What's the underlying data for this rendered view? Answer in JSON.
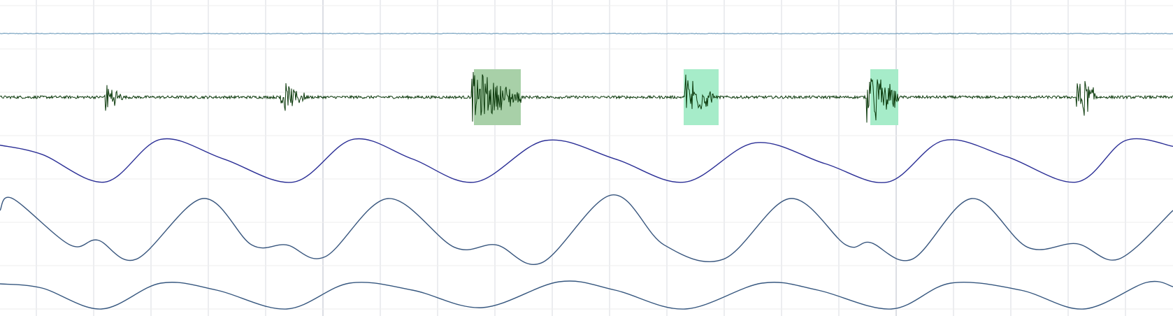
{
  "chart_data": {
    "type": "line",
    "title": "",
    "xlabel": "",
    "ylabel": "",
    "grid": true,
    "legend": "none",
    "xlim": [
      0,
      1678
    ],
    "series": [
      {
        "kind": "flat-noisy",
        "color": "#5b8fb3",
        "baseline": 0,
        "ylim": [
          -1,
          1
        ]
      },
      {
        "kind": "bursts",
        "color": "#0c3a0c",
        "ylim": [
          -1,
          1
        ],
        "baseline_noise": 0.05,
        "bursts": [
          {
            "start": 150,
            "end": 175,
            "amp": 0.75
          },
          {
            "start": 400,
            "end": 440,
            "amp": 0.6
          },
          {
            "start": 675,
            "end": 745,
            "amp": 1.0
          },
          {
            "start": 980,
            "end": 1020,
            "amp": 0.95
          },
          {
            "start": 1240,
            "end": 1285,
            "amp": 1.15
          },
          {
            "start": 1540,
            "end": 1570,
            "amp": 0.95
          }
        ],
        "highlights": [
          {
            "start": 678,
            "end": 745,
            "color": "#a8d0a8"
          },
          {
            "start": 978,
            "end": 1028,
            "color": "#a6ecc9"
          },
          {
            "start": 1245,
            "end": 1285,
            "color": "#a6ecc9"
          }
        ]
      },
      {
        "kind": "smooth",
        "color": "#2b2f96",
        "ylim": [
          -1,
          1
        ],
        "x": [
          0,
          60,
          150,
          230,
          320,
          420,
          505,
          590,
          680,
          780,
          880,
          980,
          1080,
          1180,
          1270,
          1350,
          1440,
          1540,
          1610,
          1678
        ],
        "y": [
          0.8,
          0.4,
          -0.8,
          1.05,
          0.2,
          -0.8,
          1.05,
          0.2,
          -0.8,
          1.0,
          0.2,
          -0.8,
          0.9,
          0.0,
          -0.8,
          1.0,
          0.3,
          -0.8,
          1.0,
          0.75
        ]
      },
      {
        "kind": "smooth",
        "color": "#38567e",
        "ylim": [
          -1,
          1
        ],
        "x": [
          0,
          18,
          100,
          140,
          195,
          290,
          360,
          410,
          465,
          555,
          650,
          710,
          775,
          875,
          950,
          1035,
          1130,
          1210,
          1245,
          1305,
          1390,
          1470,
          1540,
          1600,
          1678
        ],
        "y": [
          0.5,
          1.0,
          -0.95,
          -0.75,
          -1.55,
          1.0,
          -0.95,
          -0.95,
          -1.45,
          1.0,
          -1.05,
          -0.95,
          -1.7,
          1.15,
          -0.95,
          -1.55,
          1.0,
          -0.95,
          -0.85,
          -1.55,
          1.0,
          -1.05,
          -0.9,
          -1.55,
          0.5
        ]
      },
      {
        "kind": "smooth",
        "color": "#36577f",
        "ylim": [
          -1,
          1
        ],
        "x": [
          0,
          60,
          145,
          230,
          310,
          410,
          500,
          590,
          690,
          800,
          880,
          980,
          1090,
          1170,
          1275,
          1360,
          1460,
          1550,
          1640,
          1678
        ],
        "y": [
          0.8,
          0.5,
          -1.0,
          0.85,
          0.35,
          -1.0,
          0.85,
          0.35,
          -0.9,
          0.95,
          0.35,
          -1.0,
          0.85,
          0.35,
          -1.0,
          0.85,
          0.35,
          -1.0,
          0.9,
          0.6
        ]
      }
    ]
  }
}
